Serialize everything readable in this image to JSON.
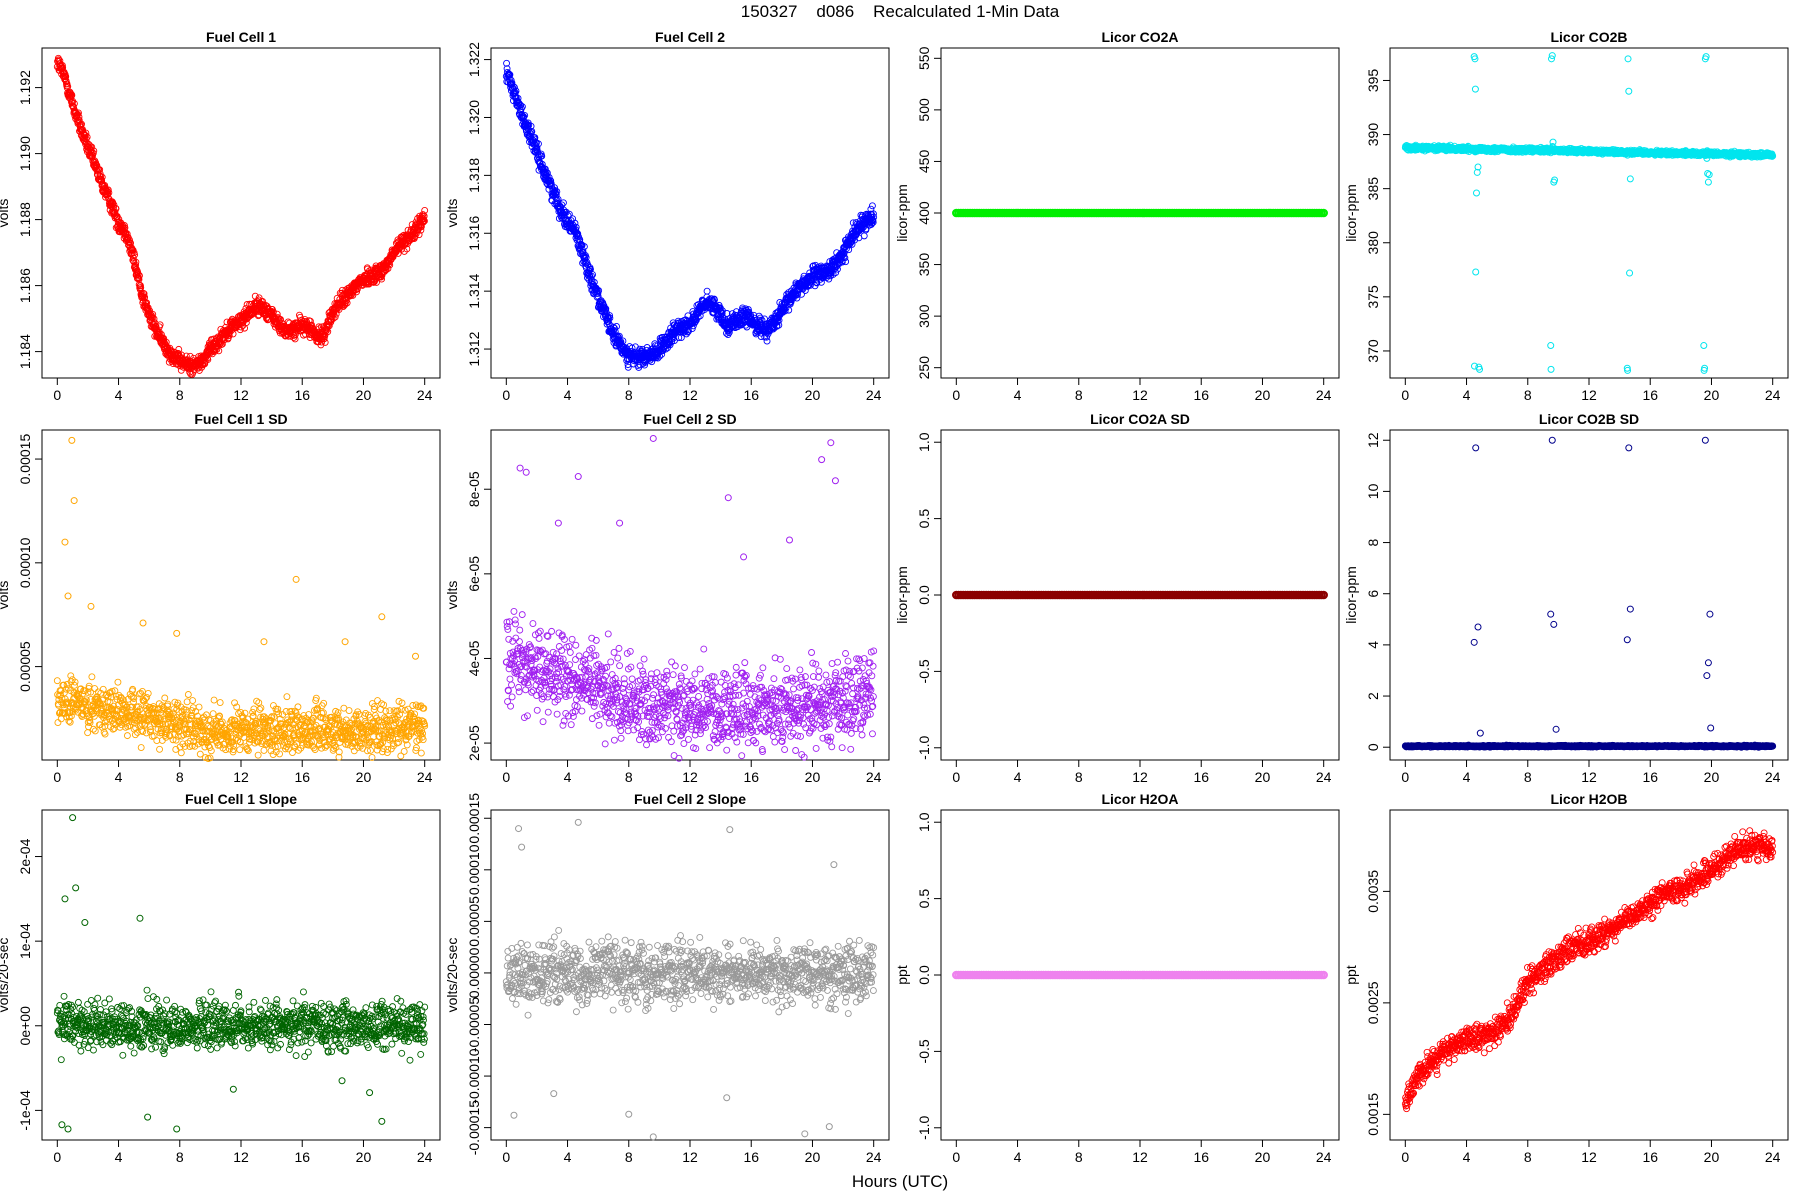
{
  "figure": {
    "title": "150327    d086    Recalculated 1-Min Data",
    "xlabel": "Hours (UTC)"
  },
  "chart_data": [
    {
      "type": "scatter",
      "title": "Fuel Cell 1",
      "ylabel": "volts",
      "color": "#ff0000",
      "xlim": [
        -1,
        25
      ],
      "ylim": [
        1.1832,
        1.1932
      ],
      "xticks": [
        "0",
        "4",
        "8",
        "12",
        "16",
        "20",
        "24"
      ],
      "yticks": [
        "1.184",
        "1.186",
        "1.188",
        "1.190",
        "1.192"
      ],
      "series": [
        {
          "marker": "circle",
          "points_per_hour": 60,
          "x": [
            0,
            0.5,
            1,
            1.5,
            2,
            2.5,
            3,
            3.5,
            4,
            4.5,
            5,
            5.5,
            6,
            6.5,
            7,
            7.5,
            8,
            8.5,
            9,
            9.5,
            10,
            10.5,
            11,
            11.5,
            12,
            12.5,
            13,
            13.5,
            14,
            14.5,
            15,
            15.5,
            16,
            16.5,
            17,
            17.5,
            18,
            18.5,
            19,
            19.5,
            20,
            20.5,
            21,
            21.5,
            22,
            22.5,
            23,
            23.5,
            24
          ],
          "y": [
            1.1928,
            1.1923,
            1.1915,
            1.1908,
            1.1902,
            1.1896,
            1.189,
            1.1885,
            1.1879,
            1.1876,
            1.1868,
            1.1858,
            1.1851,
            1.1846,
            1.1842,
            1.1839,
            1.1837,
            1.1836,
            1.1836,
            1.1837,
            1.1841,
            1.1843,
            1.1846,
            1.1848,
            1.1849,
            1.1852,
            1.1854,
            1.1853,
            1.1851,
            1.1848,
            1.1846,
            1.1847,
            1.1848,
            1.1847,
            1.1844,
            1.1846,
            1.1852,
            1.1855,
            1.1857,
            1.186,
            1.1862,
            1.1863,
            1.1864,
            1.1866,
            1.187,
            1.1873,
            1.1875,
            1.1877,
            1.1881
          ],
          "spread": 0.00018
        }
      ]
    },
    {
      "type": "scatter",
      "title": "Fuel Cell 2",
      "ylabel": "volts",
      "color": "#0000ff",
      "xlim": [
        -1,
        25
      ],
      "ylim": [
        1.311,
        1.3224
      ],
      "xticks": [
        "0",
        "4",
        "8",
        "12",
        "16",
        "20",
        "24"
      ],
      "yticks": [
        "1.312",
        "1.314",
        "1.316",
        "1.318",
        "1.320",
        "1.322"
      ],
      "series": [
        {
          "marker": "circle",
          "points_per_hour": 60,
          "x": [
            0,
            0.5,
            1,
            1.5,
            2,
            2.5,
            3,
            3.5,
            4,
            4.5,
            5,
            5.5,
            6,
            6.5,
            7,
            7.5,
            8,
            8.5,
            9,
            9.5,
            10,
            10.5,
            11,
            11.5,
            12,
            12.5,
            13,
            13.5,
            14,
            14.5,
            15,
            15.5,
            16,
            16.5,
            17,
            17.5,
            18,
            18.5,
            19,
            19.5,
            20,
            20.5,
            21,
            21.5,
            22,
            22.5,
            23,
            23.5,
            24
          ],
          "y": [
            1.3216,
            1.3209,
            1.3201,
            1.3195,
            1.3188,
            1.3181,
            1.3175,
            1.3169,
            1.3164,
            1.3161,
            1.3153,
            1.3145,
            1.3138,
            1.3131,
            1.3125,
            1.3121,
            1.3118,
            1.3117,
            1.3117,
            1.3118,
            1.312,
            1.3122,
            1.3126,
            1.3128,
            1.3129,
            1.3132,
            1.3136,
            1.3135,
            1.3132,
            1.3128,
            1.313,
            1.3131,
            1.313,
            1.3128,
            1.3127,
            1.3129,
            1.3133,
            1.3137,
            1.3141,
            1.3143,
            1.3145,
            1.3146,
            1.3147,
            1.3149,
            1.3153,
            1.3158,
            1.3162,
            1.3164,
            1.3167
          ],
          "spread": 0.00022
        }
      ]
    },
    {
      "type": "scatter",
      "title": "Licor CO2A",
      "ylabel": "licor-ppm",
      "color": "#00ee00",
      "xlim": [
        -1,
        25
      ],
      "ylim": [
        240,
        560
      ],
      "xticks": [
        "0",
        "4",
        "8",
        "12",
        "16",
        "20",
        "24"
      ],
      "yticks": [
        "250",
        "300",
        "350",
        "400",
        "450",
        "500",
        "550"
      ],
      "series": [
        {
          "marker": "circle",
          "constant": 400
        }
      ]
    },
    {
      "type": "scatter",
      "title": "Licor CO2B",
      "ylabel": "licor-ppm",
      "color": "#00e5ee",
      "xlim": [
        -1,
        25
      ],
      "ylim": [
        367.5,
        398
      ],
      "xticks": [
        "0",
        "4",
        "8",
        "12",
        "16",
        "20",
        "24"
      ],
      "yticks": [
        "370",
        "375",
        "380",
        "385",
        "390",
        "395"
      ],
      "series": [
        {
          "marker": "circle",
          "points_per_hour": 60,
          "x": [
            0,
            24
          ],
          "y": [
            388.8,
            388.1
          ],
          "spread": 0.15
        }
      ],
      "outliers": {
        "x": [
          4.55,
          4.58,
          4.6,
          4.65,
          4.7,
          4.75,
          4.8,
          4.85,
          4.5,
          4.52,
          9.55,
          9.6,
          9.65,
          9.7,
          9.75,
          9.5,
          9.52,
          14.55,
          14.6,
          14.65,
          14.7,
          14.5,
          14.52,
          19.6,
          19.65,
          19.7,
          19.75,
          19.8,
          19.85,
          19.5,
          19.52,
          19.55,
          9.62,
          19.72
        ],
        "y": [
          397,
          394.2,
          377.3,
          384.6,
          386.5,
          387,
          368.5,
          368.3,
          397.2,
          368.6,
          397,
          397.3,
          389.3,
          385.6,
          385.8,
          370.5,
          368.3,
          397,
          394,
          377.2,
          385.9,
          368.4,
          368.2,
          397,
          397.2,
          387.8,
          386.4,
          385.6,
          386.3,
          370.5,
          368.2,
          368.4,
          388.9,
          388.5
        ]
      }
    },
    {
      "type": "scatter",
      "title": "Fuel Cell 1 SD",
      "ylabel": "volts",
      "color": "#ffa500",
      "xlim": [
        -1,
        25
      ],
      "ylim": [
        5e-06,
        0.000164
      ],
      "xticks": [
        "0",
        "4",
        "8",
        "12",
        "16",
        "20",
        "24"
      ],
      "yticks": [
        "0.00005",
        "0.00010",
        "0.00015"
      ],
      "series": [
        {
          "marker": "circle",
          "points_per_hour": 50,
          "x": [
            0,
            2,
            4,
            6,
            8,
            10,
            12,
            16,
            20,
            24
          ],
          "y": [
            3.2e-05,
            3.3e-05,
            2.8e-05,
            2.6e-05,
            2.2e-05,
            1.9e-05,
            1.8e-05,
            2e-05,
            1.9e-05,
            2.2e-05
          ],
          "spread": 8e-06
        }
      ],
      "outliers": {
        "x": [
          0.95,
          1.1,
          0.5,
          0.7,
          2.2,
          5.6,
          7.8,
          15.6,
          21.2,
          13.5,
          18.8,
          23.4
        ],
        "y": [
          0.000159,
          0.00013,
          0.00011,
          8.4e-05,
          7.9e-05,
          7.1e-05,
          6.6e-05,
          9.2e-05,
          7.4e-05,
          6.2e-05,
          6.2e-05,
          5.5e-05
        ]
      }
    },
    {
      "type": "scatter",
      "title": "Fuel Cell 2 SD",
      "ylabel": "volts",
      "color": "#a020f0",
      "xlim": [
        -1,
        25
      ],
      "ylim": [
        1.6e-05,
        9.4e-05
      ],
      "xticks": [
        "0",
        "4",
        "8",
        "12",
        "16",
        "20",
        "24"
      ],
      "yticks": [
        "2e-05",
        "4e-05",
        "6e-05",
        "8e-05"
      ],
      "series": [
        {
          "marker": "circle",
          "points_per_hour": 50,
          "x": [
            0,
            2,
            4,
            6,
            8,
            10,
            12,
            16,
            20,
            24
          ],
          "y": [
            4.1e-05,
            3.7e-05,
            3.5e-05,
            3.3e-05,
            3e-05,
            2.9e-05,
            2.8e-05,
            2.8e-05,
            2.9e-05,
            3.2e-05
          ],
          "spread": 7e-06
        }
      ],
      "outliers": {
        "x": [
          9.6,
          21.2,
          20.6,
          0.9,
          1.3,
          4.7,
          7.4,
          21.5,
          14.5,
          15.5,
          3.4,
          18.5
        ],
        "y": [
          9.2e-05,
          9.1e-05,
          8.7e-05,
          8.5e-05,
          8.4e-05,
          8.3e-05,
          7.2e-05,
          8.2e-05,
          7.8e-05,
          6.4e-05,
          7.2e-05,
          6.8e-05
        ]
      }
    },
    {
      "type": "scatter",
      "title": "Licor CO2A SD",
      "ylabel": "licor-ppm",
      "color": "#8b0000",
      "xlim": [
        -1,
        25
      ],
      "ylim": [
        -1.08,
        1.08
      ],
      "xticks": [
        "0",
        "4",
        "8",
        "12",
        "16",
        "20",
        "24"
      ],
      "yticks": [
        "-1.0",
        "-0.5",
        "0.0",
        "0.5",
        "1.0"
      ],
      "series": [
        {
          "marker": "circle",
          "constant": 0
        }
      ]
    },
    {
      "type": "scatter",
      "title": "Licor CO2B SD",
      "ylabel": "licor-ppm",
      "color": "#00008b",
      "xlim": [
        -1,
        25
      ],
      "ylim": [
        -0.5,
        12.4
      ],
      "xticks": [
        "0",
        "4",
        "8",
        "12",
        "16",
        "20",
        "24"
      ],
      "yticks": [
        "0",
        "2",
        "4",
        "6",
        "8",
        "10",
        "12"
      ],
      "series": [
        {
          "marker": "circle",
          "points_per_hour": 60,
          "x": [
            0,
            24
          ],
          "y": [
            0.04,
            0.04
          ],
          "spread": 0.02
        }
      ],
      "outliers": {
        "x": [
          4.6,
          4.75,
          4.5,
          4.9,
          9.6,
          9.7,
          9.5,
          9.85,
          14.6,
          14.7,
          14.5,
          19.6,
          19.8,
          19.7,
          19.9,
          19.95
        ],
        "y": [
          11.7,
          4.7,
          4.1,
          0.55,
          12.0,
          4.8,
          5.2,
          0.7,
          11.7,
          5.4,
          4.2,
          12.0,
          3.3,
          2.8,
          5.2,
          0.75
        ]
      }
    },
    {
      "type": "scatter",
      "title": "Fuel Cell 1 Slope",
      "ylabel": "volts/20-sec",
      "color": "#006400",
      "xlim": [
        -1,
        25
      ],
      "ylim": [
        -0.000135,
        0.000255
      ],
      "xticks": [
        "0",
        "4",
        "8",
        "12",
        "16",
        "20",
        "24"
      ],
      "yticks": [
        "-1e-04",
        "0e+00",
        "1e-04",
        "2e-04"
      ],
      "series": [
        {
          "marker": "circle",
          "points_per_hour": 50,
          "x": [
            0,
            24
          ],
          "y": [
            0,
            0
          ],
          "spread": 2e-05
        }
      ],
      "outliers": {
        "x": [
          1.0,
          1.2,
          0.5,
          1.8,
          5.4,
          0.7,
          7.8,
          5.9,
          0.3,
          21.2,
          11.5,
          15.5,
          20.4,
          18.6
        ],
        "y": [
          0.000246,
          0.000163,
          0.00015,
          0.000122,
          0.000127,
          -0.000122,
          -0.000122,
          -0.000108,
          -0.000117,
          -0.000113,
          -7.5e-05,
          1e-05,
          -7.9e-05,
          -6.5e-05
        ]
      }
    },
    {
      "type": "scatter",
      "title": "Fuel Cell 2 Slope",
      "ylabel": "volts/20-sec",
      "color": "#999999",
      "xlim": [
        -1,
        25
      ],
      "ylim": [
        -0.000162,
        0.000158
      ],
      "xticks": [
        "0",
        "4",
        "8",
        "12",
        "16",
        "20",
        "24"
      ],
      "yticks": [
        "-0.00015",
        "-0.00010",
        "-0.00005",
        "0.00000",
        "0.00005",
        "0.00010",
        "0.00015"
      ],
      "series": [
        {
          "marker": "circle",
          "points_per_hour": 50,
          "x": [
            0,
            24
          ],
          "y": [
            0,
            0
          ],
          "spread": 2e-05
        }
      ],
      "outliers": {
        "x": [
          4.7,
          0.8,
          14.6,
          9.6,
          19.5,
          21.1,
          8.0,
          14.4,
          0.5,
          3.1,
          1.0,
          21.4
        ],
        "y": [
          0.000146,
          0.00014,
          0.000139,
          -0.000159,
          -0.000156,
          -0.000149,
          -0.000137,
          -0.000121,
          -0.000138,
          -0.000117,
          0.000122,
          0.000105
        ]
      }
    },
    {
      "type": "scatter",
      "title": "Licor H2OA",
      "ylabel": "ppt",
      "color": "#ee82ee",
      "xlim": [
        -1,
        25
      ],
      "ylim": [
        -1.08,
        1.08
      ],
      "xticks": [
        "0",
        "4",
        "8",
        "12",
        "16",
        "20",
        "24"
      ],
      "yticks": [
        "-1.0",
        "-0.5",
        "0.0",
        "0.5",
        "1.0"
      ],
      "series": [
        {
          "marker": "circle",
          "constant": 0
        }
      ]
    },
    {
      "type": "scatter",
      "title": "Licor H2OB",
      "ylabel": "ppt",
      "color": "#ff0000",
      "xlim": [
        -1,
        25
      ],
      "ylim": [
        0.00127,
        0.00423
      ],
      "xticks": [
        "0",
        "4",
        "8",
        "12",
        "16",
        "20",
        "24"
      ],
      "yticks": [
        "0.0015",
        "0.0025",
        "0.0035"
      ],
      "series": [
        {
          "marker": "circle",
          "points_per_hour": 50,
          "x": [
            0,
            1,
            2,
            3,
            4,
            5,
            6,
            7,
            8,
            9,
            10,
            11,
            12,
            13,
            14,
            15,
            16,
            17,
            18,
            19,
            20,
            21,
            22,
            23,
            24
          ],
          "y": [
            0.0016,
            0.0019,
            0.002,
            0.0021,
            0.00215,
            0.0022,
            0.00225,
            0.0024,
            0.0027,
            0.0028,
            0.0029,
            0.003,
            0.00305,
            0.0031,
            0.0032,
            0.0033,
            0.0034,
            0.0035,
            0.0035,
            0.0036,
            0.0037,
            0.0038,
            0.0039,
            0.0039,
            0.0039
          ],
          "spread": 8e-05
        }
      ]
    }
  ]
}
